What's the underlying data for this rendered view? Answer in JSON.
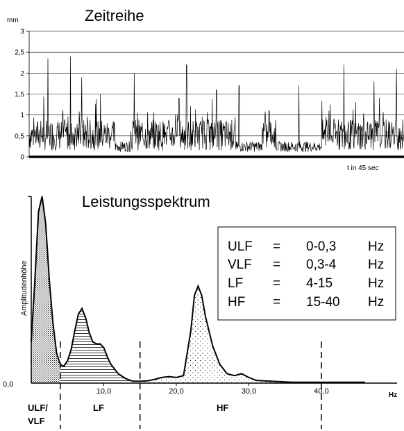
{
  "chart_data": [
    {
      "type": "line",
      "title": "Zeitreihe",
      "ylabel": "mm",
      "xlabel": "t in 45 sec",
      "ylim": [
        0,
        3
      ],
      "yticks": [
        "0",
        "0,5",
        "1",
        "1,5",
        "2",
        "2,5",
        "3"
      ],
      "grid": true,
      "series_color": "#000000",
      "spikes": [
        {
          "x": 0.05,
          "y": 2.35
        },
        {
          "x": 0.11,
          "y": 2.4
        },
        {
          "x": 0.14,
          "y": 1.9
        },
        {
          "x": 0.19,
          "y": 1.5
        },
        {
          "x": 0.28,
          "y": 2.0
        },
        {
          "x": 0.4,
          "y": 1.4
        },
        {
          "x": 0.42,
          "y": 2.2
        },
        {
          "x": 0.5,
          "y": 1.6
        },
        {
          "x": 0.56,
          "y": 1.7
        },
        {
          "x": 0.64,
          "y": 1.1
        },
        {
          "x": 0.72,
          "y": 1.7
        },
        {
          "x": 0.8,
          "y": 1.1
        },
        {
          "x": 0.84,
          "y": 2.2
        },
        {
          "x": 0.92,
          "y": 1.8
        },
        {
          "x": 0.98,
          "y": 2.1
        }
      ]
    },
    {
      "type": "area",
      "title": "Leistungsspektrum",
      "ylabel": "Amplitudenhöhe",
      "xlabel": "Hz",
      "xlim": [
        0,
        46
      ],
      "y_origin_label": "0,0",
      "xticks": [
        "10,0",
        "20,0",
        "30,0",
        "40,0"
      ],
      "xtick_values": [
        10,
        20,
        30,
        40
      ],
      "band_boundaries": [
        4,
        15,
        40
      ],
      "curve": {
        "x": [
          0,
          0.5,
          1,
          1.5,
          2,
          2.5,
          3,
          3.5,
          4,
          4.5,
          5,
          5.5,
          6,
          6.5,
          7,
          7.5,
          8,
          8.5,
          9,
          9.5,
          10,
          10.5,
          11,
          12,
          13,
          14,
          15,
          16,
          17,
          18,
          19,
          20,
          21,
          22,
          22.5,
          23,
          23.5,
          24,
          25,
          26,
          27,
          28,
          29,
          30,
          31,
          33,
          36,
          40,
          46
        ],
        "y": [
          0.22,
          0.55,
          0.92,
          1.0,
          0.85,
          0.55,
          0.32,
          0.16,
          0.1,
          0.09,
          0.12,
          0.18,
          0.28,
          0.37,
          0.4,
          0.35,
          0.27,
          0.22,
          0.21,
          0.21,
          0.19,
          0.14,
          0.1,
          0.05,
          0.025,
          0.01,
          0.01,
          0.012,
          0.02,
          0.03,
          0.035,
          0.03,
          0.04,
          0.28,
          0.47,
          0.52,
          0.47,
          0.36,
          0.2,
          0.1,
          0.05,
          0.04,
          0.05,
          0.03,
          0.015,
          0.01,
          0.005,
          0.005,
          0.005
        ]
      },
      "bands": [
        {
          "label": "ULF/",
          "label2": "VLF",
          "from": 0,
          "to": 4,
          "fill": "stipple-dense"
        },
        {
          "label": "LF",
          "from": 4,
          "to": 15,
          "fill": "hatch-horizontal"
        },
        {
          "label": "HF",
          "from": 15,
          "to": 40,
          "fill": "stipple-sparse"
        }
      ],
      "legend": [
        {
          "name": "ULF",
          "eq": "=",
          "range": "0-0,3",
          "unit": "Hz"
        },
        {
          "name": "VLF",
          "eq": "=",
          "range": "0,3-4",
          "unit": "Hz"
        },
        {
          "name": "LF",
          "eq": "=",
          "range": "4-15",
          "unit": "Hz"
        },
        {
          "name": "HF",
          "eq": "=",
          "range": "15-40",
          "unit": "Hz"
        }
      ],
      "legend_placement": "right"
    }
  ]
}
